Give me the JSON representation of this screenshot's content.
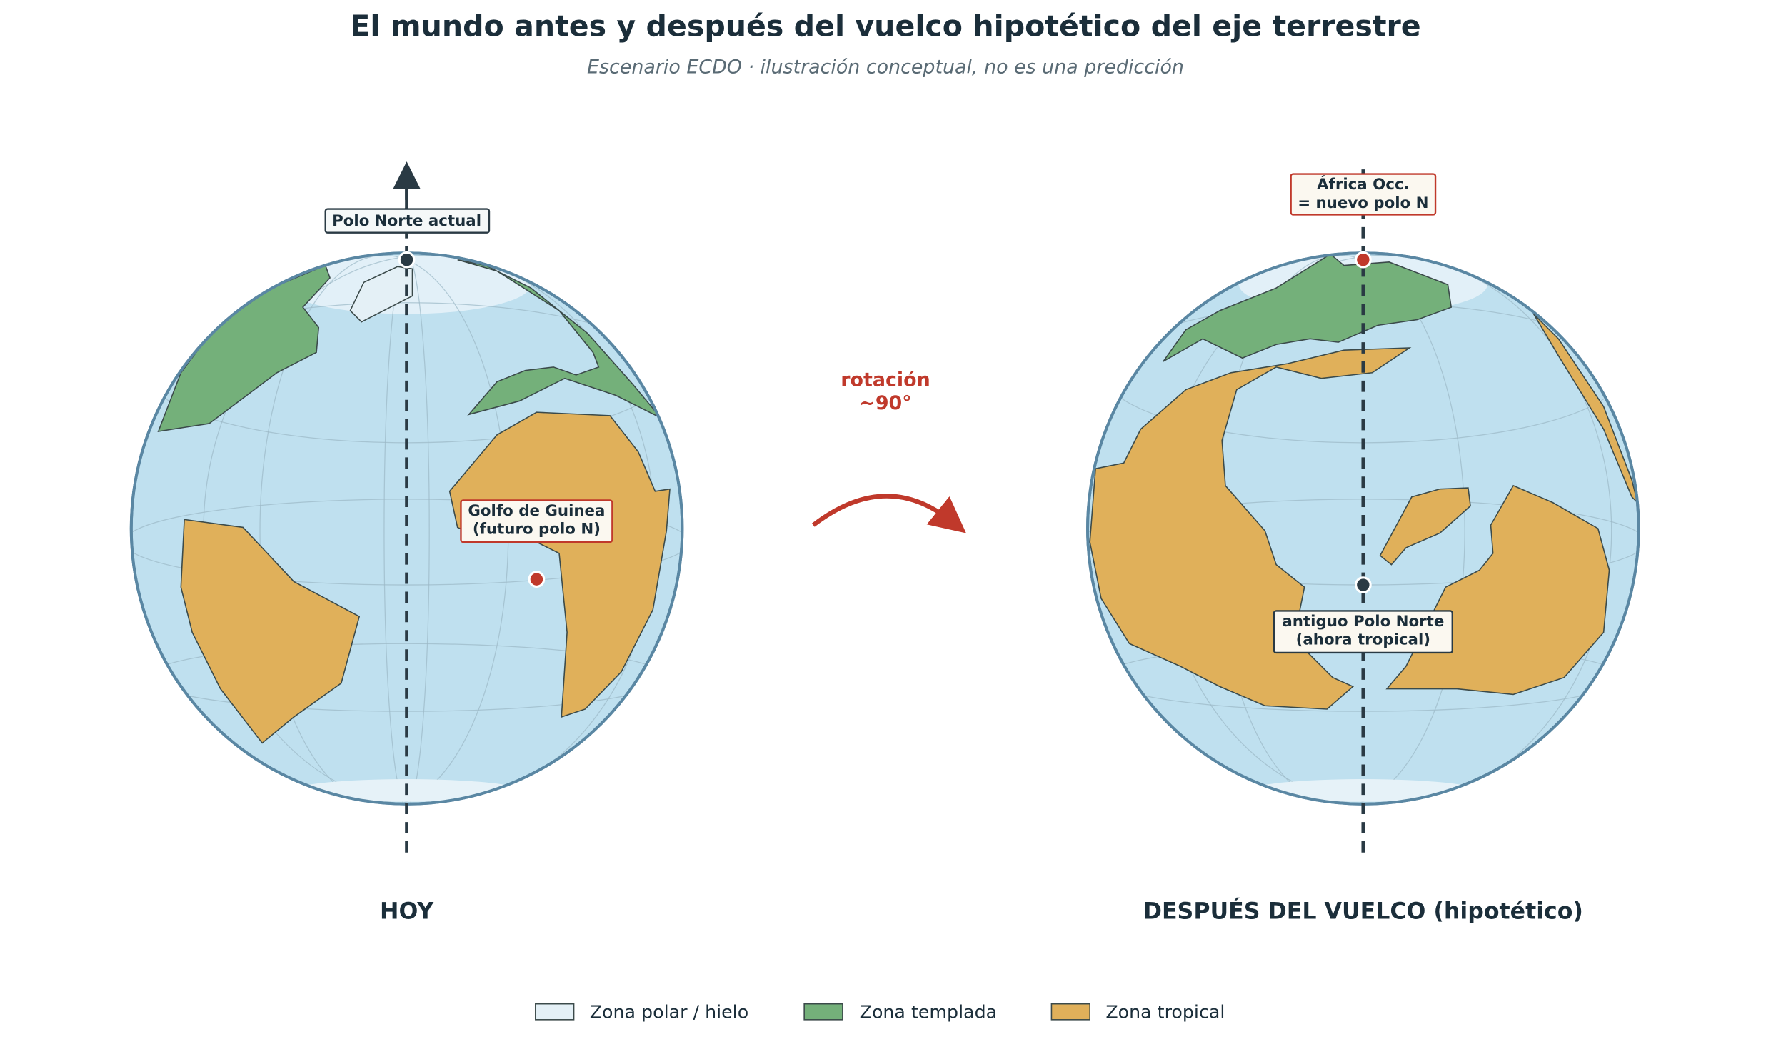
{
  "header": {
    "title": "El mundo antes y después del vuelco hipotético del eje terrestre",
    "subtitle": "Escenario ECDO · ilustración conceptual, no es una predicción"
  },
  "left_globe": {
    "caption": "HOY",
    "labels": [
      "Polo Norte actual",
      "Golfo de Guinea\n(futuro polo N)"
    ]
  },
  "right_globe": {
    "caption": "DESPUÉS DEL VUELCO (hipotético)",
    "labels": [
      "África Occ.\n= nuevo polo N",
      "antiguo Polo Norte\n(ahora tropical)"
    ]
  },
  "rotation_label": "rotación\n~90°",
  "legend": [
    "Zona polar / hielo",
    "Zona templada",
    "Zona tropical"
  ]
}
